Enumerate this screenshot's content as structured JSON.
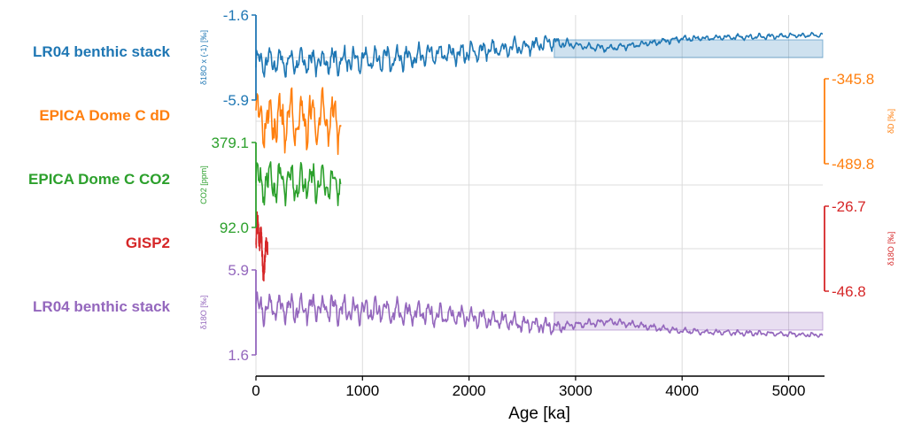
{
  "chart_data": {
    "type": "line",
    "xlabel": "Age [ka]",
    "xlim": [
      0,
      5320
    ],
    "x_ticks": [
      0,
      1000,
      2000,
      3000,
      4000,
      5000
    ],
    "grid": true,
    "series": [
      {
        "name": "LR04 benthic stack",
        "color": "#1f77b4",
        "axis_side": "left",
        "ylabel": "δ18O x (-1) [‰]",
        "ylim_labels": [
          "-1.6",
          "-5.9"
        ],
        "ylim": [
          -5.9,
          -1.6
        ],
        "x_range": [
          0,
          5320
        ],
        "fill": true,
        "trend": [
          [
            0,
            -4.0
          ],
          [
            1000,
            -3.9
          ],
          [
            2000,
            -3.5
          ],
          [
            2800,
            -3.0
          ],
          [
            3300,
            -3.3
          ],
          [
            4000,
            -2.8
          ],
          [
            5320,
            -2.6
          ]
        ],
        "amp": [
          [
            0,
            1.0
          ],
          [
            1000,
            0.9
          ],
          [
            2800,
            0.5
          ],
          [
            3000,
            0.25
          ],
          [
            5320,
            0.15
          ]
        ]
      },
      {
        "name": "EPICA Dome C dD",
        "color": "#ff7f0e",
        "axis_side": "right",
        "ylabel": "δD [‰]",
        "ylim_labels": [
          "-345.8",
          "-489.8"
        ],
        "ylim": [
          -489.8,
          -345.8
        ],
        "x_range": [
          0,
          800
        ],
        "fill": false,
        "trend": [
          [
            0,
            -415
          ],
          [
            800,
            -415
          ]
        ],
        "amp": [
          [
            0,
            70
          ],
          [
            800,
            60
          ]
        ]
      },
      {
        "name": "EPICA Dome C CO2",
        "color": "#2ca02c",
        "axis_side": "left",
        "ylabel": "CO2 [ppm]",
        "ylim_labels": [
          "379.1",
          "92.0"
        ],
        "ylim": [
          92.0,
          379.1
        ],
        "x_range": [
          0,
          800
        ],
        "fill": false,
        "trend": [
          [
            0,
            245
          ],
          [
            800,
            240
          ]
        ],
        "amp": [
          [
            0,
            100
          ],
          [
            800,
            80
          ]
        ]
      },
      {
        "name": "GISP2",
        "color": "#d62728",
        "axis_side": "right",
        "ylabel": "δ18O [‰]",
        "ylim_labels": [
          "-26.7",
          "-46.8"
        ],
        "ylim": [
          -46.8,
          -26.7
        ],
        "x_range": [
          0,
          110
        ],
        "fill": false,
        "trend": [
          [
            0,
            -36
          ],
          [
            110,
            -37
          ]
        ],
        "amp": [
          [
            0,
            10
          ],
          [
            110,
            8
          ]
        ]
      },
      {
        "name": "LR04 benthic stack",
        "color": "#9467bd",
        "axis_side": "left",
        "ylabel": "δ18O [‰]",
        "ylim_labels": [
          "5.9",
          "1.6"
        ],
        "ylim": [
          1.6,
          5.9
        ],
        "x_range": [
          0,
          5320
        ],
        "fill": true,
        "trend": [
          [
            0,
            4.0
          ],
          [
            1000,
            3.9
          ],
          [
            2000,
            3.5
          ],
          [
            2800,
            3.0
          ],
          [
            3300,
            3.3
          ],
          [
            4000,
            2.8
          ],
          [
            5320,
            2.6
          ]
        ],
        "amp": [
          [
            0,
            1.0
          ],
          [
            1000,
            0.9
          ],
          [
            2800,
            0.5
          ],
          [
            3000,
            0.25
          ],
          [
            5320,
            0.15
          ]
        ]
      }
    ]
  }
}
